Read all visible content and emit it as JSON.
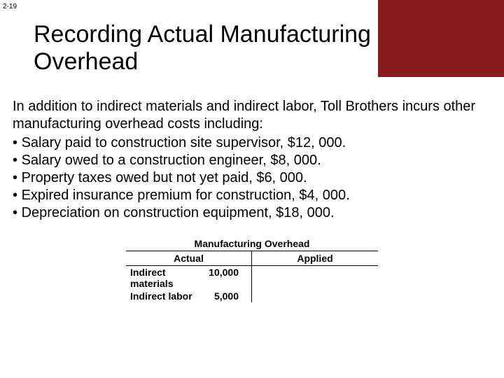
{
  "page_number": "2-19",
  "accent_color": "#8a1b1b",
  "title": "Recording Actual Manufacturing Overhead",
  "intro": "In addition to indirect materials and indirect labor, Toll Brothers incurs other manufacturing overhead costs including:",
  "bullets": [
    "Salary paid to construction site supervisor, $12, 000.",
    "Salary owed to a construction engineer, $8, 000.",
    "Property taxes owed but not yet paid, $6, 000.",
    "Expired insurance premium for construction, $4, 000.",
    "Depreciation on construction equipment, $18, 000."
  ],
  "table": {
    "title": "Manufacturing Overhead",
    "col_left": "Actual",
    "col_right": "Applied",
    "rows": [
      {
        "label": "Indirect materials",
        "value": "10,000"
      },
      {
        "label": "Indirect labor",
        "value": "5,000"
      }
    ]
  }
}
